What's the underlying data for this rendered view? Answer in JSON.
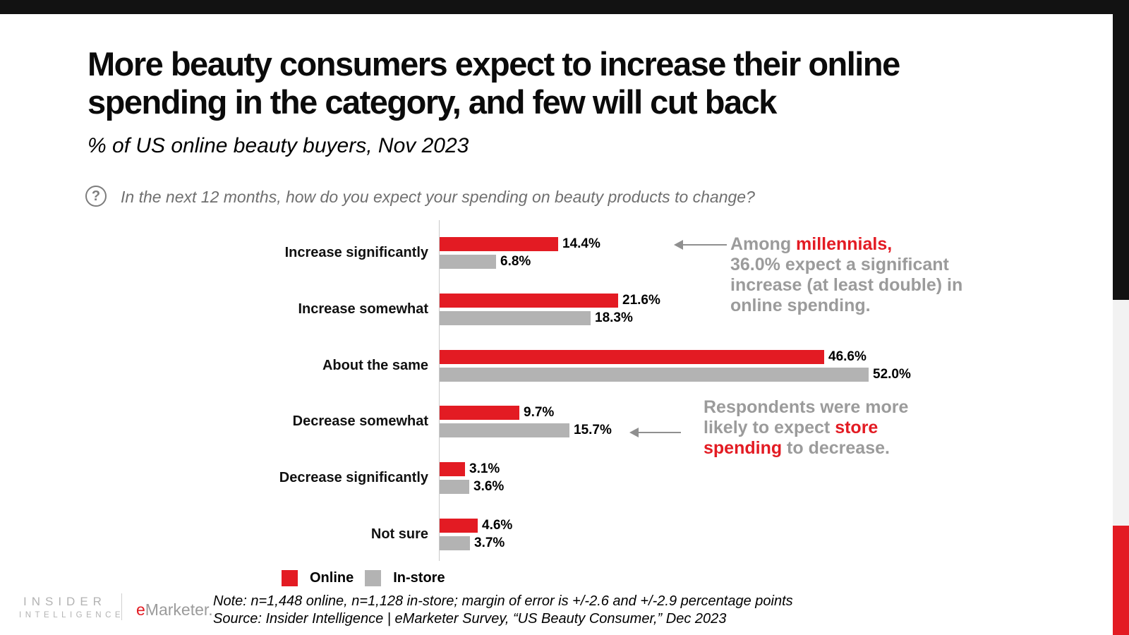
{
  "colors": {
    "accent_red": "#e31b23",
    "bar_gray": "#b3b3b3",
    "annotation_gray": "#9b9b9b",
    "frame_black": "#121212",
    "frame_light_gray": "#f2f2f2"
  },
  "header": {
    "title_line1": "More beauty consumers expect to increase their online",
    "title_line2": "spending in the category, and few will cut back",
    "subtitle": "% of US online beauty buyers, Nov 2023"
  },
  "question": {
    "icon": "question-mark-circle-icon",
    "icon_glyph": "?",
    "text": "In the next 12 months, how do you expect your spending on beauty products to change?"
  },
  "chart_data": {
    "type": "bar",
    "orientation": "horizontal",
    "title": "More beauty consumers expect to increase their online spending in the category, and few will cut back",
    "subtitle": "% of US online beauty buyers, Nov 2023",
    "categories": [
      "Increase significantly",
      "Increase somewhat",
      "About the same",
      "Decrease somewhat",
      "Decrease significantly",
      "Not sure"
    ],
    "series": [
      {
        "name": "Online",
        "color": "#e31b23",
        "values": [
          14.4,
          21.6,
          46.6,
          9.7,
          3.1,
          4.6
        ]
      },
      {
        "name": "In-store",
        "color": "#b3b3b3",
        "values": [
          6.8,
          18.3,
          52.0,
          15.7,
          3.6,
          3.7
        ]
      }
    ],
    "value_suffix": "%",
    "value_decimals": 1,
    "xlim": [
      0,
      52
    ],
    "grid": false,
    "value_labels": true,
    "legend_position": "bottom-left"
  },
  "annotations": [
    {
      "name": "millennials-callout",
      "lines": [
        [
          {
            "t": "Among ",
            "red": false
          },
          {
            "t": "millennials,",
            "red": true
          }
        ],
        [
          {
            "t": "36.0% expect a significant",
            "red": false
          }
        ],
        [
          {
            "t": "increase (at least double) in",
            "red": false
          }
        ],
        [
          {
            "t": "online spending.",
            "red": false
          }
        ]
      ]
    },
    {
      "name": "store-spending-callout",
      "lines": [
        [
          {
            "t": "Respondents were more",
            "red": false
          }
        ],
        [
          {
            "t": "likely to expect ",
            "red": false
          },
          {
            "t": "store",
            "red": true
          }
        ],
        [
          {
            "t": "spending",
            "red": true
          },
          {
            "t": " to decrease.",
            "red": false
          }
        ]
      ]
    }
  ],
  "legend": {
    "items": [
      {
        "label": "Online",
        "color": "#e31b23"
      },
      {
        "label": "In-store",
        "color": "#b3b3b3"
      }
    ]
  },
  "footnotes": {
    "note": "Note: n=1,448 online, n=1,128 in-store; margin of error is +/-2.6 and +/-2.9 percentage points",
    "source": "Source: Insider Intelligence | eMarketer Survey, “US Beauty Consumer,” Dec 2023"
  },
  "branding": {
    "insider_line1": "INSIDER",
    "insider_line2": "INTELLIGENCE",
    "emarketer_e": "e",
    "emarketer_rest": "Marketer."
  }
}
